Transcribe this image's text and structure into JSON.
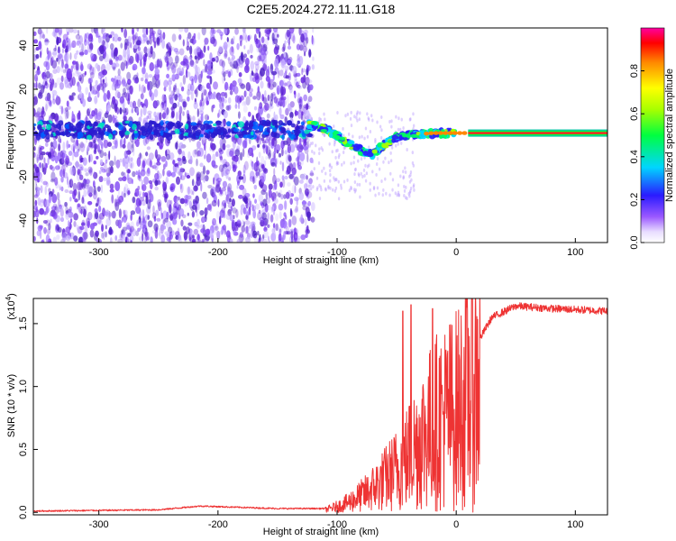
{
  "figure": {
    "title": "C2E5.2024.272.11.11.G18"
  },
  "colors": {
    "snr_line": "#ee3333",
    "spectrogram_dot": "#6a2be0",
    "background": "#ffffff"
  },
  "chart_data": [
    {
      "type": "heatmap",
      "xlabel": "Height of straight line (km)",
      "ylabel": "Frequency (Hz)",
      "xlim": [
        -355,
        127
      ],
      "ylim": [
        -50,
        48
      ],
      "x_ticks": [
        "-300",
        "-200",
        "-100",
        "0",
        "100"
      ],
      "x_tick_values": [
        -300,
        -200,
        -100,
        0,
        100
      ],
      "y_ticks": [
        "-40",
        "-20",
        "0",
        "20",
        "40"
      ],
      "y_tick_values": [
        -40,
        -20,
        0,
        20,
        40
      ],
      "colorbar": {
        "label": "Normalized spectral amplitude",
        "ticks": [
          "0.0",
          "0.2",
          "0.4",
          "0.6",
          "0.8"
        ],
        "tick_values": [
          0.0,
          0.2,
          0.4,
          0.6,
          0.8
        ],
        "range": [
          0,
          1
        ],
        "colormap": "rainbow-violet-to-magenta"
      },
      "features": {
        "noise_region_x": [
          -355,
          -120
        ],
        "signal_start_x": -125,
        "steady_tone_x": [
          10,
          127
        ],
        "steady_tone_frequency": 0,
        "doppler_track": [
          {
            "x": -125,
            "y": 4
          },
          {
            "x": -110,
            "y": 2
          },
          {
            "x": -95,
            "y": -3
          },
          {
            "x": -80,
            "y": -8
          },
          {
            "x": -70,
            "y": -10
          },
          {
            "x": -60,
            "y": -5
          },
          {
            "x": -50,
            "y": -2
          },
          {
            "x": -40,
            "y": -1
          },
          {
            "x": -20,
            "y": 0
          },
          {
            "x": 0,
            "y": 0
          }
        ]
      }
    },
    {
      "type": "line",
      "xlabel": "Height of straight line (km)",
      "ylabel": "SNR (10 * v/v)",
      "scale_label": "(x10",
      "scale_exponent": "4",
      "scale_suffix": ")",
      "xlim": [
        -355,
        127
      ],
      "ylim": [
        -0.02,
        1.7
      ],
      "x_ticks": [
        "-300",
        "-200",
        "-100",
        "0",
        "100"
      ],
      "x_tick_values": [
        -300,
        -200,
        -100,
        0,
        100
      ],
      "y_ticks": [
        "0.0",
        "0.5",
        "1.0",
        "1.5"
      ],
      "y_tick_values": [
        0.0,
        0.5,
        1.0,
        1.5
      ],
      "series": [
        {
          "profile": [
            {
              "x": -355,
              "y": 0.01
            },
            {
              "x": -250,
              "y": 0.02
            },
            {
              "x": -215,
              "y": 0.05
            },
            {
              "x": -150,
              "y": 0.03
            },
            {
              "x": -110,
              "y": 0.03
            },
            {
              "x": -95,
              "y": 0.1
            },
            {
              "x": -75,
              "y": 0.25
            },
            {
              "x": -60,
              "y": 0.4
            },
            {
              "x": -45,
              "y": 0.55
            },
            {
              "x": -30,
              "y": 0.8
            },
            {
              "x": -15,
              "y": 0.95
            },
            {
              "x": 0,
              "y": 1.05
            },
            {
              "x": 15,
              "y": 1.3
            },
            {
              "x": 30,
              "y": 1.55
            },
            {
              "x": 50,
              "y": 1.64
            },
            {
              "x": 80,
              "y": 1.62
            },
            {
              "x": 127,
              "y": 1.6
            }
          ],
          "peak_values": [
            {
              "x": -45,
              "y": 1.6
            },
            {
              "x": -38,
              "y": 1.65
            },
            {
              "x": -20,
              "y": 1.62
            }
          ]
        }
      ]
    }
  ]
}
